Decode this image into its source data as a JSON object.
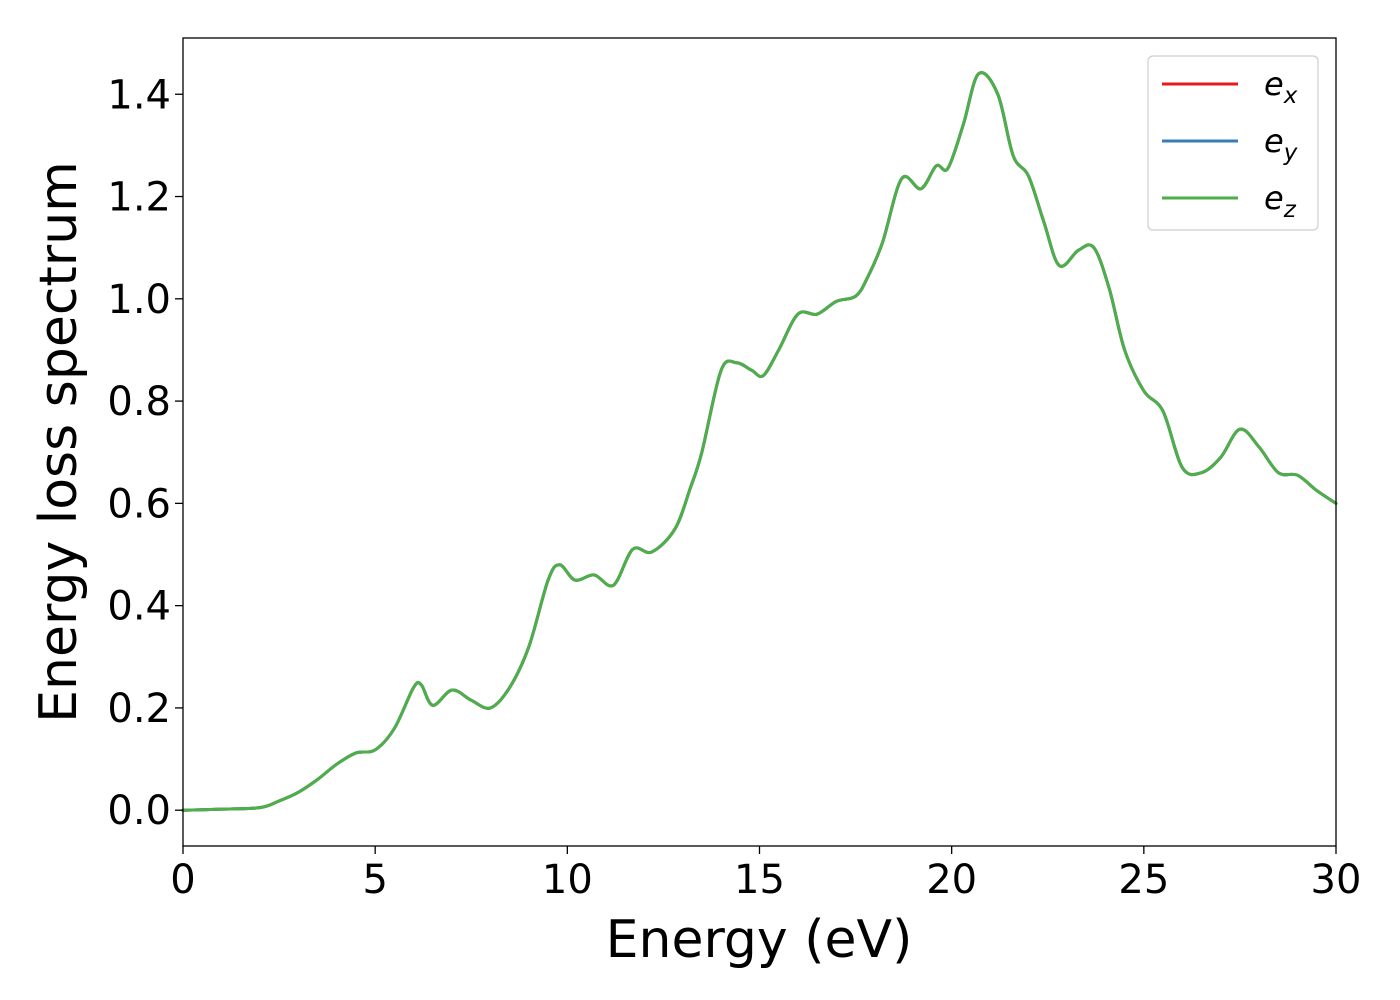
{
  "chart_data": {
    "type": "line",
    "title": "",
    "xlabel": "Energy (eV)",
    "ylabel": "Energy loss spectrum",
    "xlim": [
      0,
      30
    ],
    "ylim": [
      -0.07,
      1.51
    ],
    "xticks": [
      0,
      5,
      10,
      15,
      20,
      25,
      30
    ],
    "yticks": [
      "0.0",
      "0.2",
      "0.4",
      "0.6",
      "0.8",
      "1.0",
      "1.2",
      "1.4"
    ],
    "grid": false,
    "legend_position": "top-right",
    "series": [
      {
        "name": "e_x",
        "legend_base": "e",
        "legend_sub": "x",
        "color": "#e41a1c",
        "x": [
          0,
          1,
          2,
          2.5,
          3,
          3.5,
          4,
          4.5,
          5,
          5.5,
          6,
          6.2,
          6.5,
          7,
          7.5,
          8,
          8.5,
          9,
          9.5,
          9.8,
          10.2,
          10.7,
          11.2,
          11.7,
          12.2,
          12.8,
          13.2,
          13.5,
          14,
          14.4,
          14.8,
          15.1,
          15.5,
          16,
          16.5,
          17,
          17.5,
          17.8,
          18.2,
          18.7,
          19.2,
          19.6,
          19.9,
          20.3,
          20.7,
          21.2,
          21.6,
          22,
          22.4,
          22.8,
          23.3,
          23.7,
          24.1,
          24.5,
          25,
          25.5,
          26,
          26.5,
          27,
          27.5,
          28,
          28.5,
          29,
          29.5,
          30
        ],
        "y": [
          0,
          0.002,
          0.005,
          0.018,
          0.035,
          0.06,
          0.09,
          0.112,
          0.118,
          0.16,
          0.24,
          0.245,
          0.205,
          0.235,
          0.215,
          0.2,
          0.24,
          0.32,
          0.45,
          0.48,
          0.45,
          0.46,
          0.44,
          0.51,
          0.505,
          0.55,
          0.63,
          0.7,
          0.86,
          0.875,
          0.86,
          0.85,
          0.9,
          0.97,
          0.97,
          0.995,
          1.005,
          1.04,
          1.11,
          1.235,
          1.215,
          1.26,
          1.255,
          1.34,
          1.44,
          1.4,
          1.28,
          1.24,
          1.15,
          1.065,
          1.095,
          1.1,
          1.02,
          0.9,
          0.82,
          0.78,
          0.67,
          0.66,
          0.69,
          0.745,
          0.71,
          0.66,
          0.655,
          0.625,
          0.6
        ]
      },
      {
        "name": "e_y",
        "legend_base": "e",
        "legend_sub": "y",
        "color": "#377eb8",
        "x": [
          0,
          1,
          2,
          2.5,
          3,
          3.5,
          4,
          4.5,
          5,
          5.5,
          6,
          6.2,
          6.5,
          7,
          7.5,
          8,
          8.5,
          9,
          9.5,
          9.8,
          10.2,
          10.7,
          11.2,
          11.7,
          12.2,
          12.8,
          13.2,
          13.5,
          14,
          14.4,
          14.8,
          15.1,
          15.5,
          16,
          16.5,
          17,
          17.5,
          17.8,
          18.2,
          18.7,
          19.2,
          19.6,
          19.9,
          20.3,
          20.7,
          21.2,
          21.6,
          22,
          22.4,
          22.8,
          23.3,
          23.7,
          24.1,
          24.5,
          25,
          25.5,
          26,
          26.5,
          27,
          27.5,
          28,
          28.5,
          29,
          29.5,
          30
        ],
        "y": [
          0,
          0.002,
          0.005,
          0.018,
          0.035,
          0.06,
          0.09,
          0.112,
          0.118,
          0.16,
          0.24,
          0.245,
          0.205,
          0.235,
          0.215,
          0.2,
          0.24,
          0.32,
          0.45,
          0.48,
          0.45,
          0.46,
          0.44,
          0.51,
          0.505,
          0.55,
          0.63,
          0.7,
          0.86,
          0.875,
          0.86,
          0.85,
          0.9,
          0.97,
          0.97,
          0.995,
          1.005,
          1.04,
          1.11,
          1.235,
          1.215,
          1.26,
          1.255,
          1.34,
          1.44,
          1.4,
          1.28,
          1.24,
          1.15,
          1.065,
          1.095,
          1.1,
          1.02,
          0.9,
          0.82,
          0.78,
          0.67,
          0.66,
          0.69,
          0.745,
          0.71,
          0.66,
          0.655,
          0.625,
          0.6
        ]
      },
      {
        "name": "e_z",
        "legend_base": "e",
        "legend_sub": "z",
        "color": "#4daf4a",
        "x": [
          0,
          1,
          2,
          2.5,
          3,
          3.5,
          4,
          4.5,
          5,
          5.5,
          6,
          6.2,
          6.5,
          7,
          7.5,
          8,
          8.5,
          9,
          9.5,
          9.8,
          10.2,
          10.7,
          11.2,
          11.7,
          12.2,
          12.8,
          13.2,
          13.5,
          14,
          14.4,
          14.8,
          15.1,
          15.5,
          16,
          16.5,
          17,
          17.5,
          17.8,
          18.2,
          18.7,
          19.2,
          19.6,
          19.9,
          20.3,
          20.7,
          21.2,
          21.6,
          22,
          22.4,
          22.8,
          23.3,
          23.7,
          24.1,
          24.5,
          25,
          25.5,
          26,
          26.5,
          27,
          27.5,
          28,
          28.5,
          29,
          29.5,
          30
        ],
        "y": [
          0,
          0.002,
          0.005,
          0.018,
          0.035,
          0.06,
          0.09,
          0.112,
          0.118,
          0.16,
          0.24,
          0.245,
          0.205,
          0.235,
          0.215,
          0.2,
          0.24,
          0.32,
          0.45,
          0.48,
          0.45,
          0.46,
          0.44,
          0.51,
          0.505,
          0.55,
          0.63,
          0.7,
          0.86,
          0.875,
          0.86,
          0.85,
          0.9,
          0.97,
          0.97,
          0.995,
          1.005,
          1.04,
          1.11,
          1.235,
          1.215,
          1.26,
          1.255,
          1.34,
          1.44,
          1.4,
          1.28,
          1.24,
          1.15,
          1.065,
          1.095,
          1.1,
          1.02,
          0.9,
          0.82,
          0.78,
          0.67,
          0.66,
          0.69,
          0.745,
          0.71,
          0.66,
          0.655,
          0.625,
          0.6
        ]
      }
    ]
  }
}
